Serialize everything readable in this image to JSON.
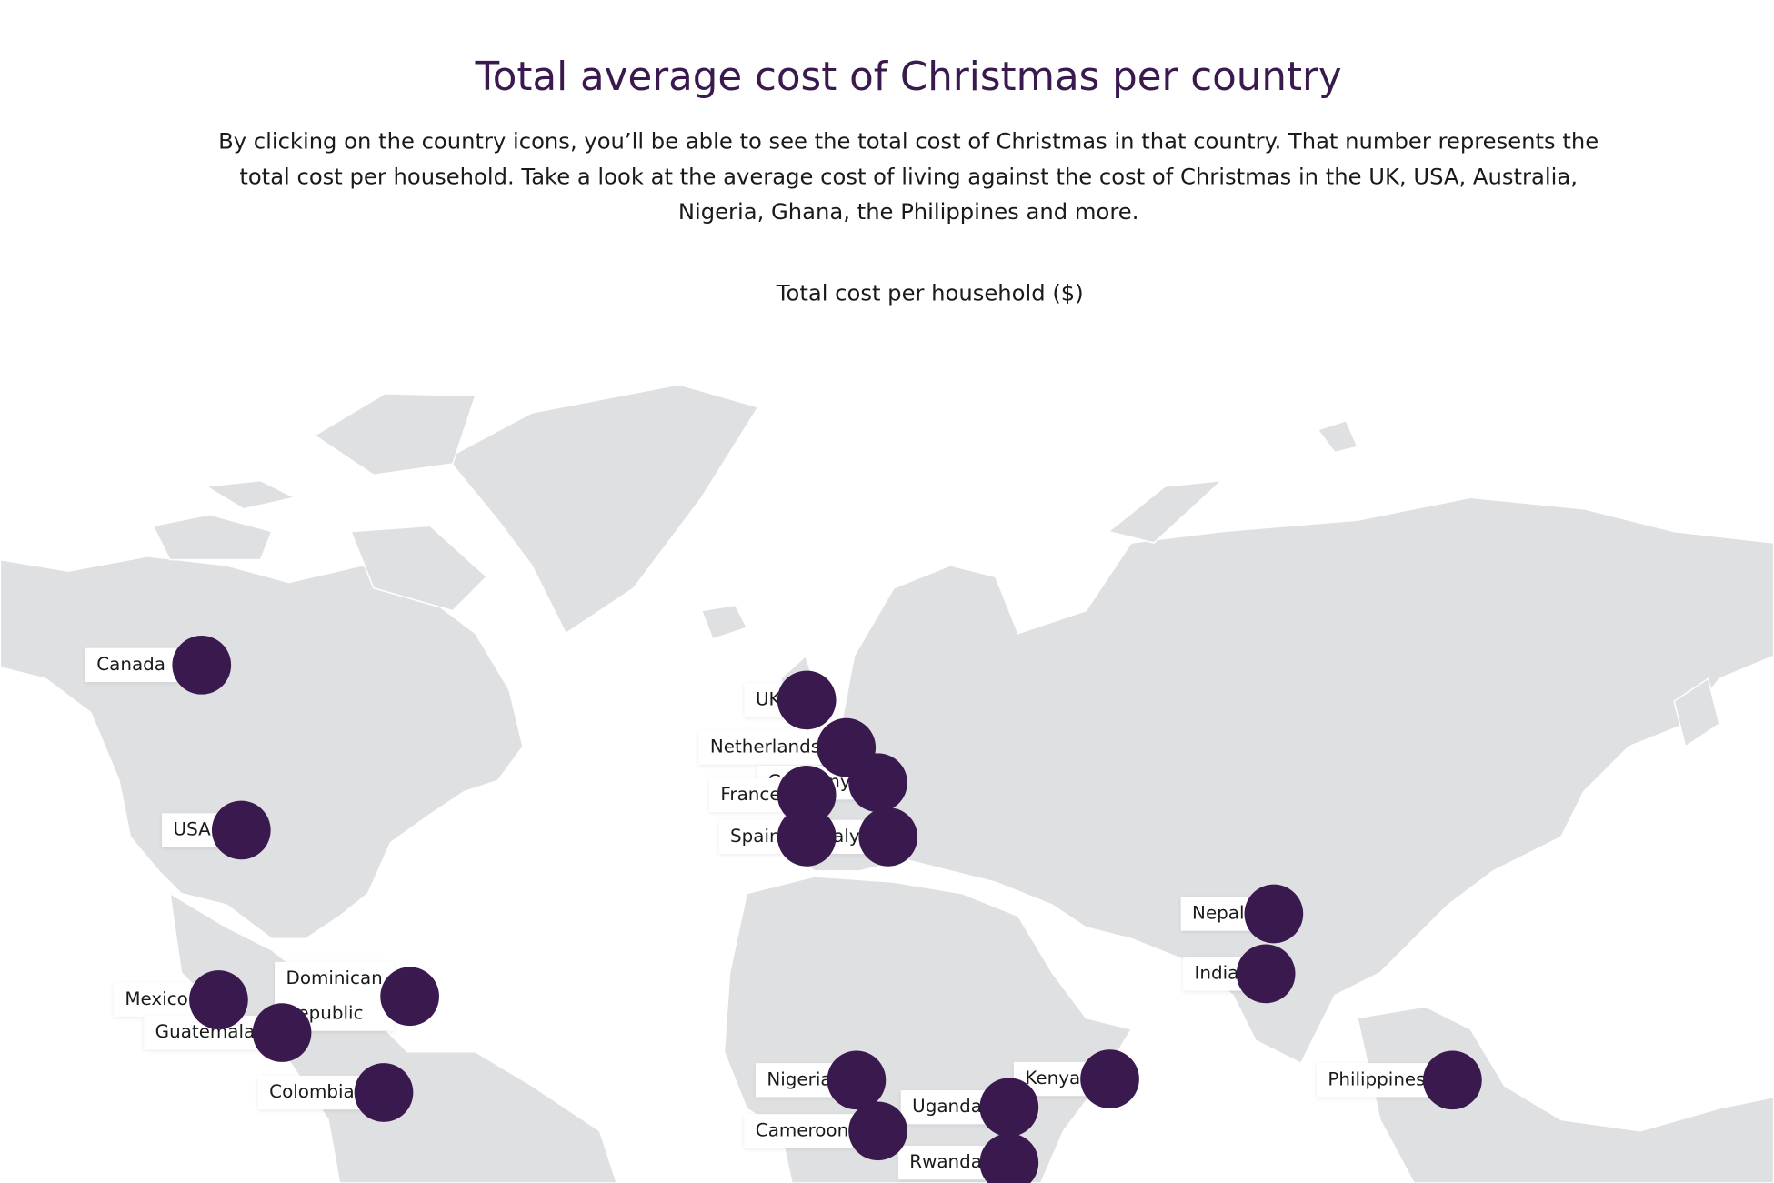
{
  "header": {
    "title": "Total average cost of Christmas per country",
    "description": [
      "By clicking on the country icons, you’ll be able to see the total cost of Christmas in that country. That number represents the",
      "total cost per household. Take a look at the average cost of living against the cost of Christmas in the UK, USA, Australia,",
      "Nigeria, Ghana, the Philippines and more."
    ]
  },
  "map": {
    "caption": "Total cost per household ($)",
    "countries": [
      {
        "label": [
          "Canada"
        ]
      },
      {
        "label": [
          "USA"
        ]
      },
      {
        "label": [
          "Mexico"
        ]
      },
      {
        "label": [
          "Guatemala"
        ]
      },
      {
        "label": [
          "Dominican",
          "Republic"
        ]
      },
      {
        "label": [
          "Colombia"
        ]
      },
      {
        "label": [
          "UK"
        ]
      },
      {
        "label": [
          "Netherlands"
        ]
      },
      {
        "label": [
          "Germany"
        ]
      },
      {
        "label": [
          "France"
        ]
      },
      {
        "label": [
          "Italy"
        ]
      },
      {
        "label": [
          "Spain"
        ]
      },
      {
        "label": [
          "Nepal"
        ]
      },
      {
        "label": [
          "India"
        ]
      },
      {
        "label": [
          "Philippines"
        ]
      },
      {
        "label": [
          "Nigeria"
        ]
      },
      {
        "label": [
          "Cameroon"
        ]
      },
      {
        "label": [
          "Uganda"
        ]
      },
      {
        "label": [
          "Kenya"
        ]
      },
      {
        "label": [
          "Rwanda"
        ]
      }
    ]
  }
}
